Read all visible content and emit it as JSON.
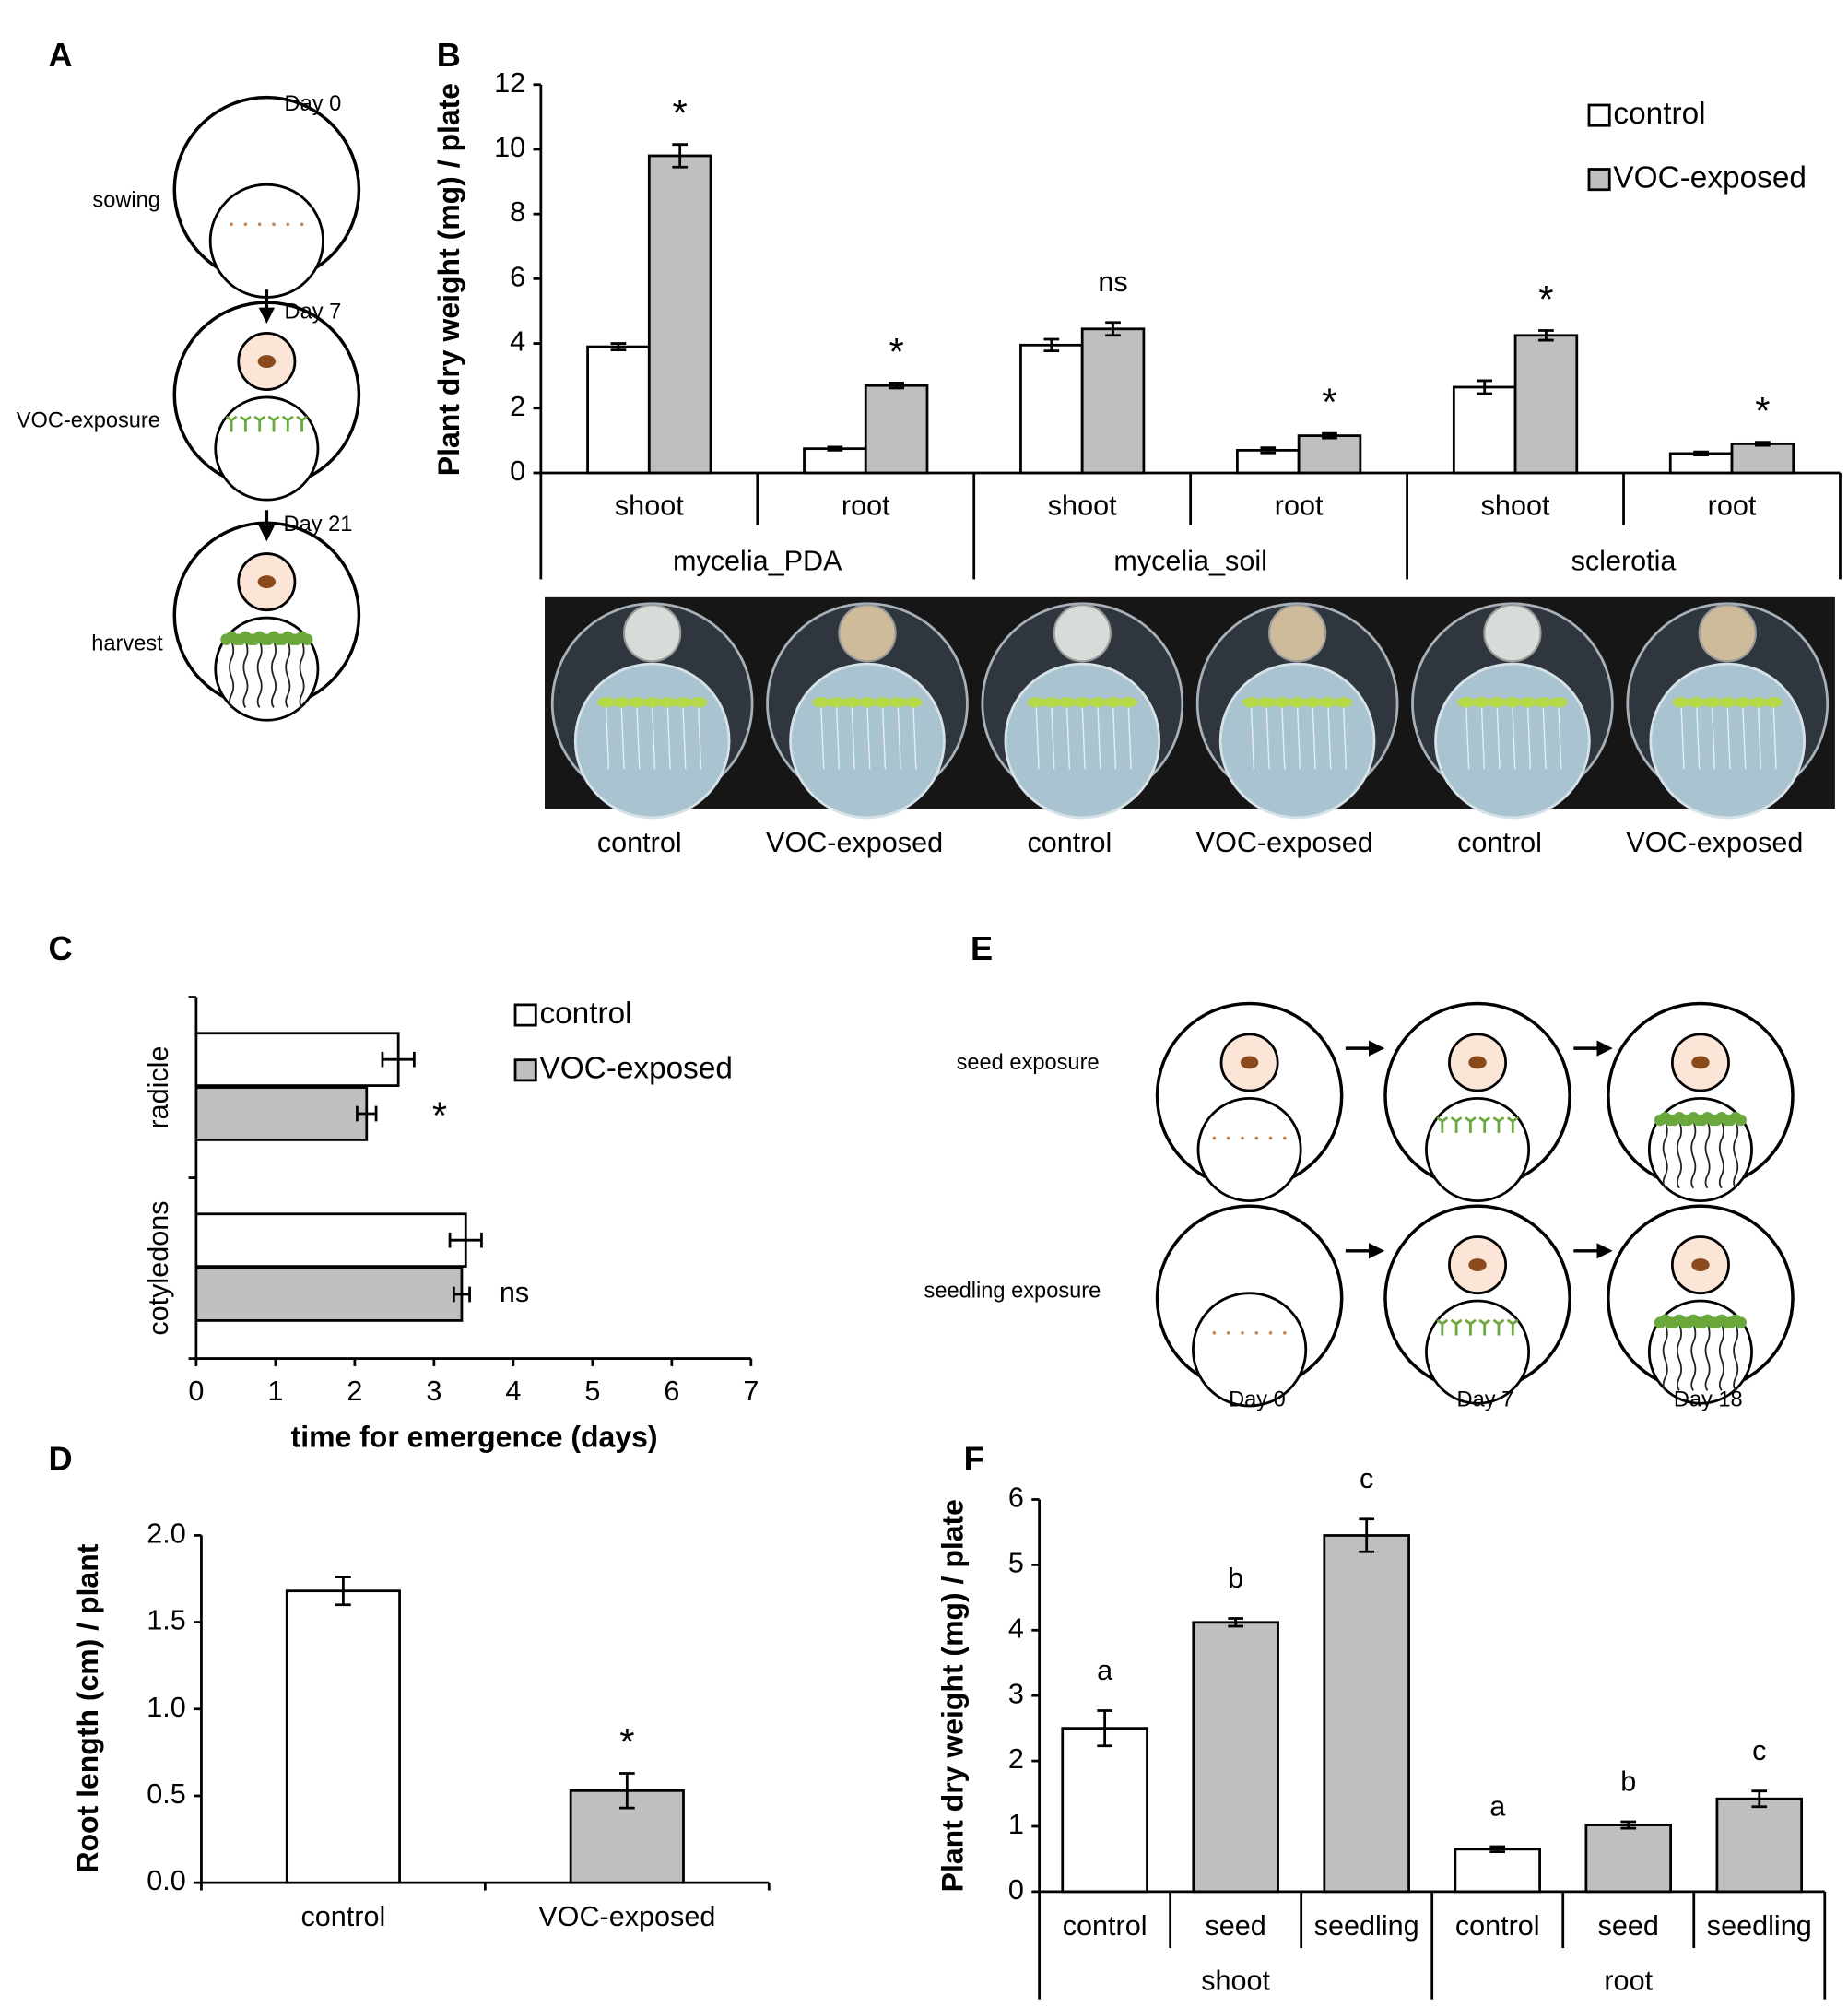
{
  "chart_data": [
    {
      "panel": "B",
      "type": "bar",
      "y_label": "Plant dry weight (mg) / plate",
      "categories": [
        "shoot",
        "root",
        "shoot",
        "root",
        "shoot",
        "root"
      ],
      "groups": [
        "mycelia_PDA",
        "mycelia_soil",
        "sclerotia"
      ],
      "series": [
        {
          "name": "control",
          "color": "#ffffff",
          "values": [
            3.9,
            0.75,
            3.95,
            0.7,
            2.65,
            0.6
          ],
          "errors": [
            0.1,
            0.05,
            0.18,
            0.08,
            0.2,
            0.05
          ]
        },
        {
          "name": "VOC-exposed",
          "color": "#bfbfbf",
          "values": [
            9.8,
            2.7,
            4.45,
            1.15,
            4.25,
            0.9
          ],
          "errors": [
            0.35,
            0.08,
            0.2,
            0.07,
            0.15,
            0.05
          ]
        }
      ],
      "annotations": [
        "*",
        "*",
        "ns",
        "*",
        "*",
        "*"
      ],
      "ylim": [
        0,
        12
      ],
      "yticks": [
        0,
        2,
        4,
        6,
        8,
        10,
        12
      ],
      "legend": "upper right",
      "photo_labels": [
        "control",
        "VOC-exposed",
        "control",
        "VOC-exposed",
        "control",
        "VOC-exposed"
      ]
    },
    {
      "panel": "C",
      "type": "barh",
      "x_label": "time for emergence (days)",
      "categories": [
        "radicle",
        "cotyledons"
      ],
      "series": [
        {
          "name": "control",
          "color": "#ffffff",
          "values": [
            2.55,
            3.4
          ],
          "errors": [
            0.2,
            0.2
          ]
        },
        {
          "name": "VOC-exposed",
          "color": "#bfbfbf",
          "values": [
            2.15,
            3.35
          ],
          "errors": [
            0.12,
            0.1
          ]
        }
      ],
      "annotations": [
        "*",
        "ns"
      ],
      "xlim": [
        0,
        7
      ],
      "xticks": [
        0,
        1,
        2,
        3,
        4,
        5,
        6,
        7
      ],
      "legend": "upper right"
    },
    {
      "panel": "D",
      "type": "bar",
      "y_label": "Root length (cm) / plant",
      "categories": [
        "control",
        "VOC-exposed"
      ],
      "values": [
        1.68,
        0.53
      ],
      "errors": [
        0.08,
        0.1
      ],
      "colors": [
        "#ffffff",
        "#bfbfbf"
      ],
      "annotations": [
        null,
        "*"
      ],
      "ylim": [
        0,
        2
      ],
      "yticks": [
        {
          "value": 0,
          "label": "0.0"
        },
        0.5,
        {
          "value": 1,
          "label": "1.0"
        },
        1.5,
        {
          "value": 2,
          "label": "2.0"
        }
      ]
    },
    {
      "panel": "F",
      "type": "bar",
      "y_label": "Plant dry weight (mg) / plate",
      "categories": [
        "control",
        "seed",
        "seedling",
        "control",
        "seed",
        "seedling"
      ],
      "groups": [
        "shoot",
        "root"
      ],
      "values": [
        2.5,
        4.12,
        5.45,
        0.65,
        1.02,
        1.42
      ],
      "errors": [
        0.27,
        0.06,
        0.25,
        0.04,
        0.05,
        0.12
      ],
      "colors": [
        "#ffffff",
        "#bfbfbf",
        "#bfbfbf",
        "#ffffff",
        "#bfbfbf",
        "#bfbfbf"
      ],
      "annotations": [
        "a",
        "b",
        "c",
        "a",
        "b",
        "c"
      ],
      "ylim": [
        0,
        6
      ],
      "yticks": [
        0,
        1,
        2,
        3,
        4,
        5,
        6
      ]
    }
  ],
  "diagrams": [
    {
      "panel": "A",
      "stages": [
        "sowing",
        "VOC-exposure",
        "harvest"
      ],
      "days": [
        "Day 0",
        "Day 7",
        "Day 21"
      ]
    },
    {
      "panel": "E",
      "rows": [
        "seed exposure",
        "seedling exposure"
      ],
      "days": [
        "Day 0",
        "Day 7",
        "Day 18"
      ]
    }
  ]
}
